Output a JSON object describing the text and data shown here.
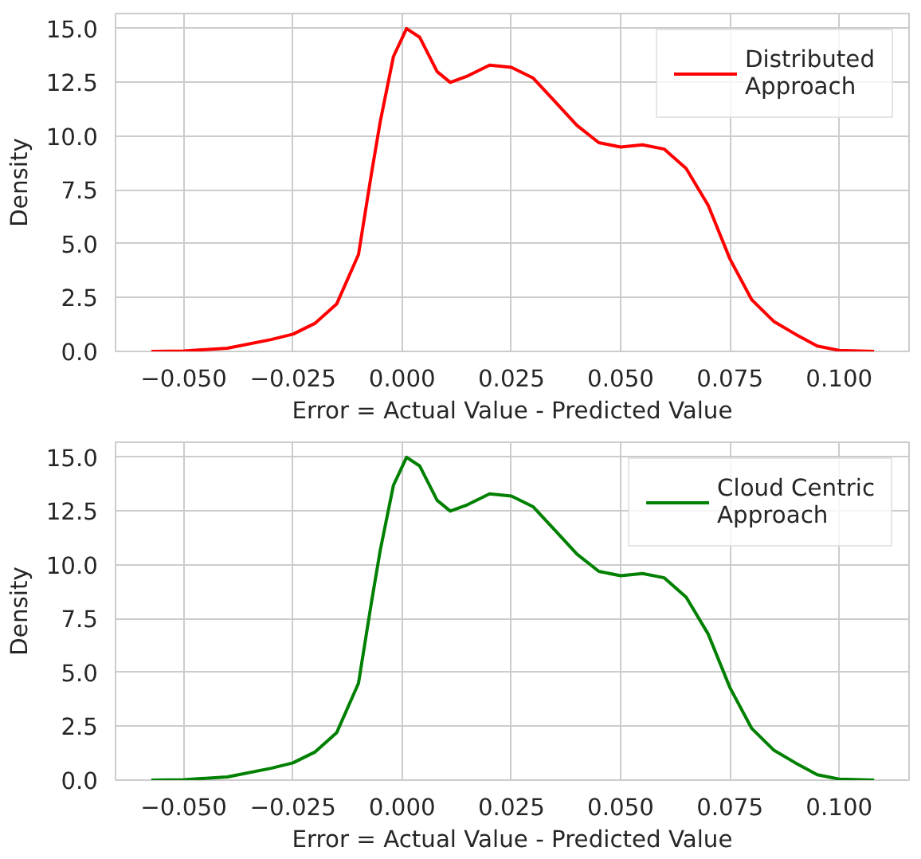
{
  "chart_data": [
    {
      "type": "line",
      "xlabel": "Error = Actual Value - Predicted Value",
      "ylabel": "Density",
      "x": [
        -0.0574,
        -0.05,
        -0.04,
        -0.03,
        -0.025,
        -0.02,
        -0.015,
        -0.01,
        -0.007,
        -0.005,
        -0.002,
        0.001,
        0.004,
        0.008,
        0.011,
        0.015,
        0.02,
        0.025,
        0.03,
        0.035,
        0.04,
        0.045,
        0.05,
        0.055,
        0.06,
        0.065,
        0.07,
        0.075,
        0.08,
        0.085,
        0.09,
        0.095,
        0.1,
        0.108
      ],
      "series": [
        {
          "name": "Distributed\nApproach",
          "color": "#ff0000",
          "values": [
            0,
            0.02,
            0.15,
            0.55,
            0.8,
            1.3,
            2.2,
            4.5,
            8.3,
            10.7,
            13.7,
            15.0,
            14.6,
            13.0,
            12.5,
            12.8,
            13.3,
            13.2,
            12.7,
            11.6,
            10.5,
            9.7,
            9.5,
            9.6,
            9.4,
            8.5,
            6.8,
            4.3,
            2.4,
            1.4,
            0.8,
            0.25,
            0.05,
            0
          ]
        }
      ],
      "xlim": [
        -0.0656,
        0.116
      ],
      "ylim": [
        0,
        15.7
      ],
      "xticks": [
        {
          "value": -0.05,
          "label": "−0.050"
        },
        {
          "value": -0.025,
          "label": "−0.025"
        },
        {
          "value": 0,
          "label": "0.000"
        },
        {
          "value": 0.025,
          "label": "0.025"
        },
        {
          "value": 0.05,
          "label": "0.050"
        },
        {
          "value": 0.075,
          "label": "0.075"
        },
        {
          "value": 0.1,
          "label": "0.100"
        }
      ],
      "yticks": [
        {
          "value": 0,
          "label": "0.0"
        },
        {
          "value": 2.5,
          "label": "2.5"
        },
        {
          "value": 5,
          "label": "5.0"
        },
        {
          "value": 7.5,
          "label": "7.5"
        },
        {
          "value": 10,
          "label": "10.0"
        },
        {
          "value": 12.5,
          "label": "12.5"
        },
        {
          "value": 15,
          "label": "15.0"
        }
      ],
      "grid": true,
      "legend": "top right"
    },
    {
      "type": "line",
      "xlabel": "Error = Actual Value - Predicted Value",
      "ylabel": "Density",
      "x": [
        -0.0574,
        -0.05,
        -0.04,
        -0.03,
        -0.025,
        -0.02,
        -0.015,
        -0.01,
        -0.007,
        -0.005,
        -0.002,
        0.001,
        0.004,
        0.008,
        0.011,
        0.015,
        0.02,
        0.025,
        0.03,
        0.035,
        0.04,
        0.045,
        0.05,
        0.055,
        0.06,
        0.065,
        0.07,
        0.075,
        0.08,
        0.085,
        0.09,
        0.095,
        0.1,
        0.108
      ],
      "series": [
        {
          "name": "Cloud Centric\nApproach",
          "color": "#008000",
          "values": [
            0,
            0.02,
            0.15,
            0.55,
            0.8,
            1.3,
            2.2,
            4.5,
            8.3,
            10.7,
            13.7,
            15.0,
            14.6,
            13.0,
            12.5,
            12.8,
            13.3,
            13.2,
            12.7,
            11.6,
            10.5,
            9.7,
            9.5,
            9.6,
            9.4,
            8.5,
            6.8,
            4.3,
            2.4,
            1.4,
            0.8,
            0.25,
            0.05,
            0
          ]
        }
      ],
      "xlim": [
        -0.0656,
        0.116
      ],
      "ylim": [
        0,
        15.7
      ],
      "xticks": [
        {
          "value": -0.05,
          "label": "−0.050"
        },
        {
          "value": -0.025,
          "label": "−0.025"
        },
        {
          "value": 0,
          "label": "0.000"
        },
        {
          "value": 0.025,
          "label": "0.025"
        },
        {
          "value": 0.05,
          "label": "0.050"
        },
        {
          "value": 0.075,
          "label": "0.075"
        },
        {
          "value": 0.1,
          "label": "0.100"
        }
      ],
      "yticks": [
        {
          "value": 0,
          "label": "0.0"
        },
        {
          "value": 2.5,
          "label": "2.5"
        },
        {
          "value": 5,
          "label": "5.0"
        },
        {
          "value": 7.5,
          "label": "7.5"
        },
        {
          "value": 10,
          "label": "10.0"
        },
        {
          "value": 12.5,
          "label": "12.5"
        },
        {
          "value": 15,
          "label": "15.0"
        }
      ],
      "grid": true,
      "legend": "top right"
    }
  ]
}
